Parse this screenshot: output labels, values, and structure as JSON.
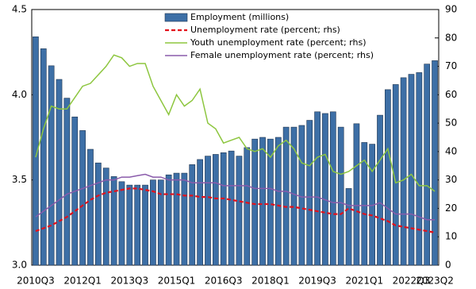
{
  "chart_data": {
    "type": "bar_line",
    "categories": [
      "2010Q3",
      null,
      null,
      null,
      null,
      null,
      "2012Q1",
      null,
      null,
      null,
      null,
      null,
      "2013Q3",
      null,
      null,
      null,
      null,
      null,
      "2015Q1",
      null,
      null,
      null,
      null,
      null,
      "2016Q3",
      null,
      null,
      null,
      null,
      null,
      "2018Q1",
      null,
      null,
      null,
      null,
      null,
      "2019Q3",
      null,
      null,
      null,
      null,
      null,
      "2021Q1",
      null,
      null,
      null,
      null,
      null,
      "2022Q3",
      null,
      null,
      "2023Q2"
    ],
    "series": [
      {
        "name": "Employment (millions)",
        "type": "bar",
        "color": "#3d6fa6",
        "axis": "y",
        "values": [
          4.34,
          4.27,
          4.17,
          4.09,
          3.98,
          3.87,
          3.79,
          3.68,
          3.6,
          3.57,
          3.52,
          3.49,
          3.47,
          3.47,
          3.47,
          3.5,
          3.5,
          3.53,
          3.54,
          3.54,
          3.59,
          3.62,
          3.64,
          3.65,
          3.66,
          3.67,
          3.64,
          3.69,
          3.74,
          3.75,
          3.74,
          3.75,
          3.81,
          3.81,
          3.82,
          3.85,
          3.9,
          3.89,
          3.9,
          3.81,
          3.45,
          3.83,
          3.72,
          3.71,
          3.88,
          4.03,
          4.06,
          4.1,
          4.12,
          4.13,
          4.18,
          4.2
        ]
      },
      {
        "name": "Unemployment rate (percent; rhs)",
        "type": "line",
        "dashed": true,
        "color": "#e3101a",
        "axis": "y2",
        "values": [
          12,
          13,
          14,
          15.5,
          17,
          19,
          21,
          23,
          24.5,
          25.5,
          26,
          26.5,
          27,
          27,
          26.5,
          26,
          25,
          25,
          25,
          24.5,
          24.5,
          24,
          24,
          23.5,
          23.5,
          23,
          22.5,
          22,
          21.5,
          21.5,
          21.5,
          21,
          20.5,
          20.5,
          20,
          19.5,
          19,
          18.5,
          18,
          18,
          20,
          19,
          18,
          17.5,
          16.5,
          15.5,
          14,
          13.5,
          13,
          12.5,
          12,
          11.5
        ]
      },
      {
        "name": "Youth unemployment rate (percent; rhs)",
        "type": "line",
        "dashed": false,
        "color": "#8dc63f",
        "axis": "y2",
        "values": [
          38,
          48,
          56,
          55,
          55,
          59,
          63,
          64,
          67,
          70,
          74,
          73,
          70,
          71,
          71,
          63,
          58,
          53,
          60,
          56,
          58,
          62,
          50,
          48,
          43,
          44,
          45,
          41,
          40,
          41,
          38,
          42,
          44,
          41,
          36,
          35,
          38,
          39,
          33,
          32,
          33,
          35,
          37,
          33,
          37,
          41,
          29,
          30,
          32,
          28,
          28,
          26
        ]
      },
      {
        "name": "Female unemployment rate (percent; rhs)",
        "type": "line",
        "dashed": false,
        "color": "#8a5bab",
        "axis": "y2",
        "values": [
          17,
          19,
          21,
          23,
          25,
          26,
          27,
          28,
          29,
          30,
          30,
          31,
          31,
          31.5,
          32,
          31,
          31,
          30,
          30,
          30,
          29,
          29,
          29,
          29,
          28,
          28,
          28,
          28,
          27,
          27,
          27,
          26,
          26,
          25,
          24,
          24,
          24,
          23,
          22,
          22,
          21,
          21,
          21,
          21,
          22,
          20,
          18,
          18,
          18,
          17,
          16,
          16
        ]
      }
    ],
    "ylim": [
      3.0,
      4.5
    ],
    "yticks": [
      {
        "value": 3,
        "label": "3.0"
      },
      3.5,
      {
        "value": 4,
        "label": "4.0"
      },
      4.5
    ],
    "y2lim": [
      0,
      90
    ],
    "y2ticks": [
      0,
      10,
      20,
      30,
      40,
      50,
      60,
      70,
      80,
      90
    ],
    "grid": false,
    "legend": "top"
  }
}
